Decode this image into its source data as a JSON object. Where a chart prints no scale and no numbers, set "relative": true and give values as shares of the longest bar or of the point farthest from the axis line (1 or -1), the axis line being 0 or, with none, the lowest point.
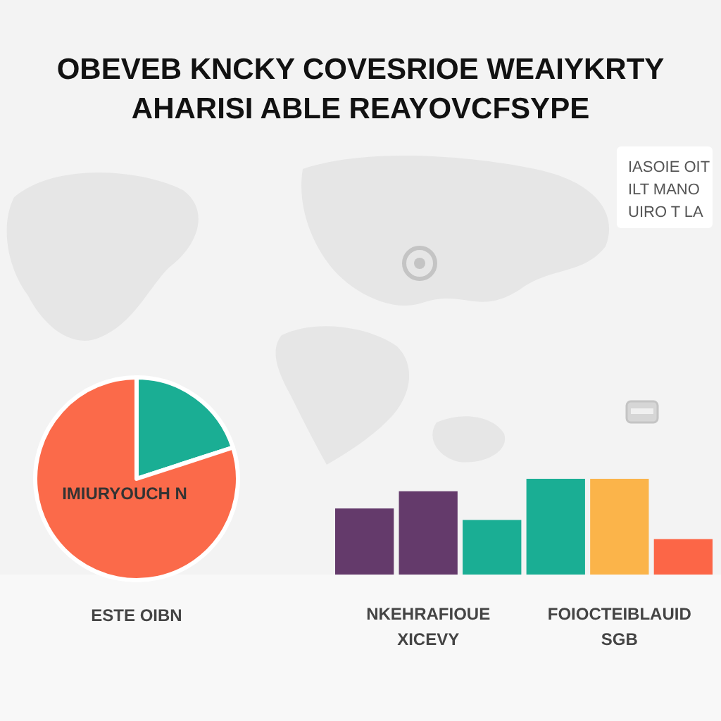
{
  "chart_data": [
    {
      "type": "pie",
      "title": "OBEVEB KNCKY COVESRIOE WEAIYKRTY",
      "subtitle": "AHARISI ABLE REAYOVCFSYPE",
      "xlabel": "ESTE OIBN",
      "categories": [
        null,
        "IMIURYOUCH N"
      ],
      "values": [
        20,
        80
      ],
      "colors": [
        "#1aae94",
        "#fb6a4a"
      ]
    },
    {
      "type": "other",
      "annotations": [
        "IASOIE OIT",
        "ILT MANO",
        "UIRO T LA"
      ]
    },
    {
      "type": "bar",
      "relative": true,
      "categories": [
        null,
        "NKEHRAFIOUE XICEVY",
        null,
        null,
        "FOIOCTEIBLAUID SGB",
        null
      ],
      "values": [
        0.69,
        0.87,
        0.57,
        1,
        1,
        0.37
      ],
      "colors": [
        "#643a6b",
        "#643a6b",
        "#1aae94",
        "#1aae94",
        "#fbb44a",
        "#fc6647"
      ]
    }
  ]
}
